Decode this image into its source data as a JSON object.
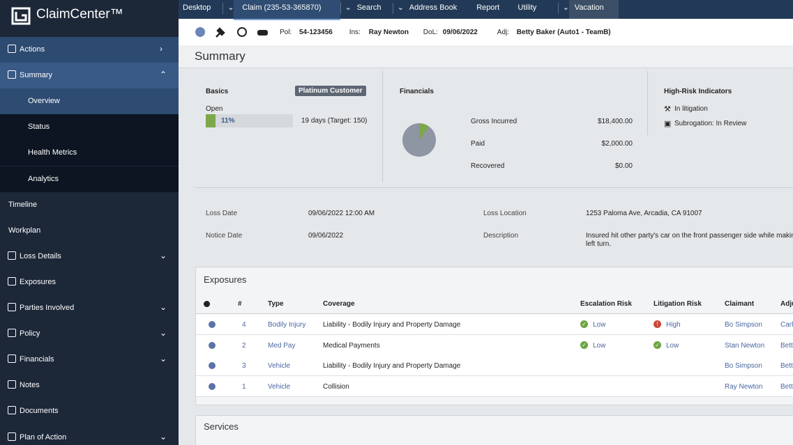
{
  "app": {
    "name": "ClaimCenter™"
  },
  "nav_tabs": [
    {
      "label": "Desktop",
      "dropdown": true
    },
    {
      "label": "Claim (235-53-365870)",
      "dropdown": true,
      "active": true
    },
    {
      "label": "Search",
      "dropdown": true
    },
    {
      "label": "Address Book",
      "dropdown": false
    },
    {
      "label": "Report",
      "dropdown": false
    },
    {
      "label": "Utility",
      "dropdown": true
    },
    {
      "label": "Vacation",
      "dropdown": false,
      "highlight": true
    }
  ],
  "sidebar": [
    {
      "label": "Actions",
      "style": "actions",
      "chevron": "right"
    },
    {
      "label": "Summary",
      "style": "summary",
      "chevron": "up"
    },
    {
      "label": "Overview",
      "style": "sub-active"
    },
    {
      "label": "Status",
      "style": "sub"
    },
    {
      "label": "Health Metrics",
      "style": "sub"
    },
    {
      "label": "Analytics",
      "style": "sub"
    },
    {
      "label": "Timeline",
      "style": "plain"
    },
    {
      "label": "Workplan",
      "style": "plain"
    },
    {
      "label": "Loss Details",
      "style": "plain",
      "chevron": "down"
    },
    {
      "label": "Exposures",
      "style": "plain"
    },
    {
      "label": "Parties Involved",
      "style": "plain",
      "chevron": "down"
    },
    {
      "label": "Policy",
      "style": "plain",
      "chevron": "down"
    },
    {
      "label": "Financials",
      "style": "plain",
      "chevron": "down"
    },
    {
      "label": "Notes",
      "style": "plain"
    },
    {
      "label": "Documents",
      "style": "plain"
    },
    {
      "label": "Plan of Action",
      "style": "plain",
      "chevron": "down"
    }
  ],
  "info_bar": [
    {
      "label": "Pol:",
      "value": "54-123456"
    },
    {
      "label": "Ins:",
      "value": "Ray Newton"
    },
    {
      "label": "DoL:",
      "value": "09/06/2022"
    },
    {
      "label": "Adj:",
      "value": "Betty Baker (Auto1 - TeamB)"
    }
  ],
  "page_title": "Summary",
  "basics": {
    "title": "Basics",
    "badge": "Platinum Customer",
    "status": "Open",
    "progress": {
      "value": 11,
      "label": "11%"
    },
    "days": "19 days (Target: 150)"
  },
  "financials": {
    "title": "Financials",
    "rows": [
      {
        "label": "Gross Incurred",
        "value": "$18,400.00"
      },
      {
        "label": "Paid",
        "value": "$2,000.00"
      },
      {
        "label": "Recovered",
        "value": "$0.00"
      }
    ]
  },
  "risk": {
    "title": "High-Risk Indicators",
    "items": [
      "In litigation",
      "Subrogation: In Review"
    ]
  },
  "details": [
    {
      "label": "Loss Date",
      "value": "09/06/2022 12:00 AM"
    },
    {
      "label": "Loss Location",
      "value": "1253 Paloma Ave, Arcadia, CA 91007"
    },
    {
      "label": "Notice Date",
      "value": "09/06/2022"
    },
    {
      "label": "Description",
      "value": "Insured hit other party's car on the front passenger side while making a left turn."
    }
  ],
  "exposures": {
    "title": "Exposures",
    "columns": [
      "#",
      "Type",
      "Coverage",
      "Escalation Risk",
      "Litigation Risk",
      "Claimant",
      "Adju"
    ],
    "rows": [
      {
        "num": 4,
        "type": "Bodily Injury",
        "coverage": "Liability - Bodily Injury and Property Damage",
        "escalation": "Low",
        "escalation_level": "ok",
        "litigation": "High",
        "litigation_level": "high",
        "claimant": "Bo Simpson",
        "adjuster": "Carl"
      },
      {
        "num": 2,
        "type": "Med Pay",
        "coverage": "Medical Payments",
        "escalation": "Low",
        "escalation_level": "ok",
        "litigation": "Low",
        "litigation_level": "ok",
        "claimant": "Stan Newton",
        "adjuster": "Bett"
      },
      {
        "num": 3,
        "type": "Vehicle",
        "coverage": "Liability - Bodily Injury and Property Damage",
        "escalation": null,
        "litigation": null,
        "claimant": "Bo Simpson",
        "adjuster": "Bett"
      },
      {
        "num": 1,
        "type": "Vehicle",
        "coverage": "Collision",
        "escalation": null,
        "litigation": null,
        "claimant": "Ray Newton",
        "adjuster": "Bett"
      }
    ]
  },
  "services": {
    "title": "Services"
  }
}
